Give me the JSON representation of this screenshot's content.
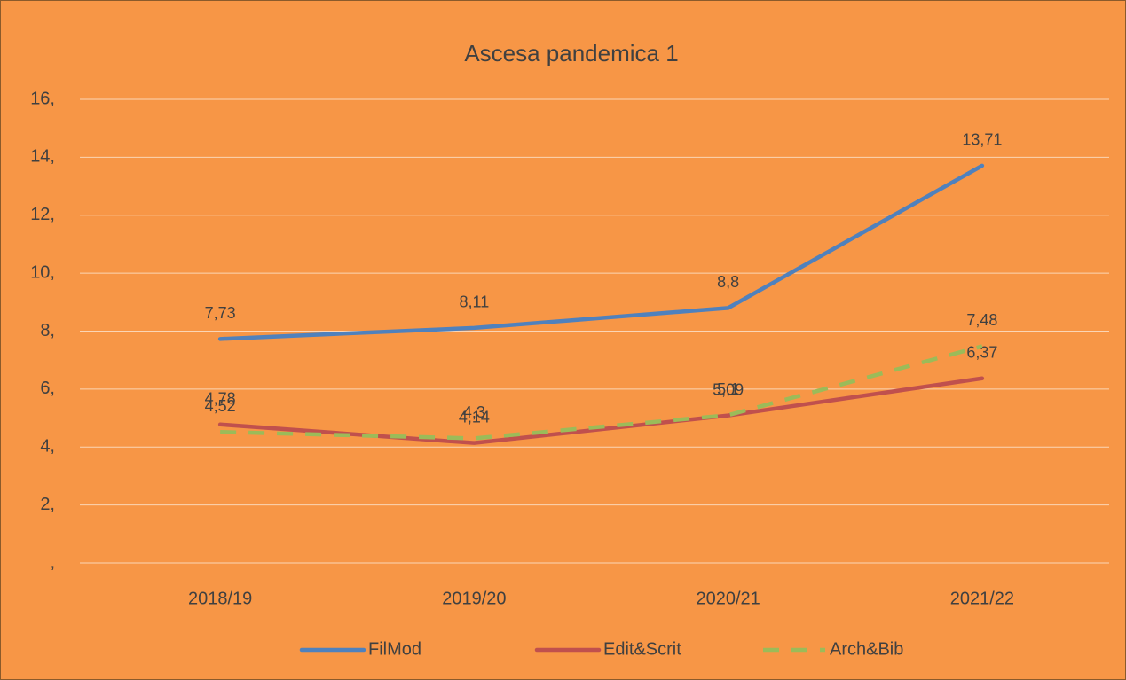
{
  "chart_data": {
    "type": "line",
    "title": "Ascesa pandemica 1",
    "categories": [
      "2018/19",
      "2019/20",
      "2020/21",
      "2021/22"
    ],
    "series": [
      {
        "name": "FilMod",
        "color": "#4f81bd",
        "dash": false,
        "values": [
          7.73,
          8.11,
          8.8,
          13.71
        ],
        "value_labels": [
          "7,73",
          "8,11",
          "8,8",
          "13,71"
        ]
      },
      {
        "name": "Edit&Scrit",
        "color": "#c0504d",
        "dash": false,
        "values": [
          4.78,
          4.14,
          5.09,
          6.37
        ],
        "value_labels": [
          "4,78",
          "4,14",
          "5,09",
          "6,37"
        ]
      },
      {
        "name": "Arch&Bib",
        "color": "#9bbb59",
        "dash": true,
        "values": [
          4.52,
          4.3,
          5.1,
          7.48
        ],
        "value_labels": [
          "4,52",
          "4,3",
          "5,1",
          "7,48"
        ]
      }
    ],
    "ylim": [
      0,
      16
    ],
    "yticks": [
      {
        "value": 0,
        "label": ","
      },
      {
        "value": 2,
        "label": "2,"
      },
      {
        "value": 4,
        "label": "4,"
      },
      {
        "value": 6,
        "label": "6,"
      },
      {
        "value": 8,
        "label": "8,"
      },
      {
        "value": 10,
        "label": "10,"
      },
      {
        "value": 12,
        "label": "12,"
      },
      {
        "value": 14,
        "label": "14,"
      },
      {
        "value": 16,
        "label": "16,"
      }
    ],
    "grid": true,
    "legend": "bottom"
  }
}
